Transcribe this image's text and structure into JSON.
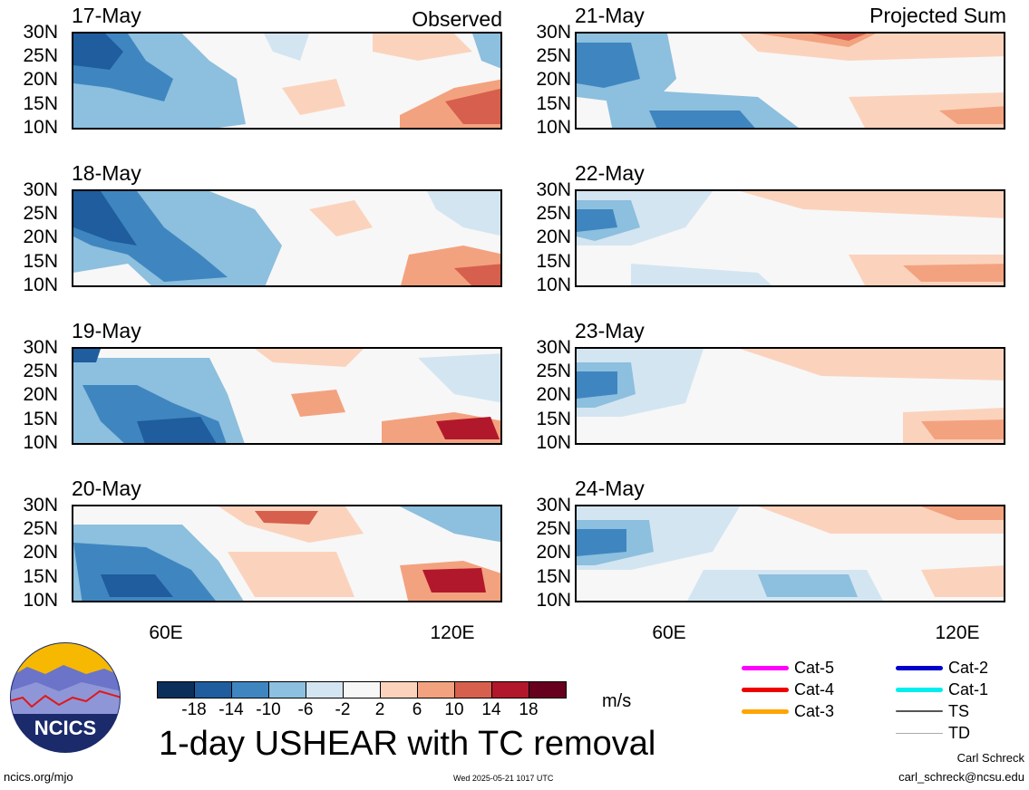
{
  "panels": {
    "observed_label": "Observed",
    "projected_label": "Projected Sum",
    "left_dates": [
      "17-May",
      "18-May",
      "19-May",
      "20-May"
    ],
    "right_dates": [
      "21-May",
      "22-May",
      "23-May",
      "24-May"
    ]
  },
  "axes": {
    "lat_ticks": [
      "30N",
      "25N",
      "20N",
      "15N",
      "10N"
    ],
    "lon_ticks": [
      "60E",
      "120E"
    ]
  },
  "colorbar": {
    "ticks": [
      "-18",
      "-14",
      "-10",
      "-6",
      "-2",
      "2",
      "6",
      "10",
      "14",
      "18"
    ],
    "colors": [
      "#0b2f5a",
      "#1f5d9e",
      "#3f86c0",
      "#8dbfde",
      "#d3e5f1",
      "#f7f7f7",
      "#fbd3bd",
      "#f3a27f",
      "#d6604d",
      "#b2182b",
      "#67001f"
    ],
    "units": "m/s"
  },
  "title": "1-day USHEAR with TC removal",
  "legend": {
    "items": [
      {
        "label": "Cat-5",
        "color": "#ff00ff"
      },
      {
        "label": "Cat-4",
        "color": "#ee0000"
      },
      {
        "label": "Cat-3",
        "color": "#ffa500"
      },
      {
        "label": "Cat-2",
        "color": "#0000cc"
      },
      {
        "label": "Cat-1",
        "color": "#00eeee"
      },
      {
        "label": "TS",
        "color": "#555555"
      },
      {
        "label": "TD",
        "color": "#aaaaaa"
      }
    ]
  },
  "logo_text": "NCICS",
  "footer": {
    "url": "ncics.org/mjo",
    "timestamp": "Wed 2025-05-21 1017 UTC",
    "author": "Carl Schreck",
    "email": "carl_schreck@ncsu.edu"
  }
}
